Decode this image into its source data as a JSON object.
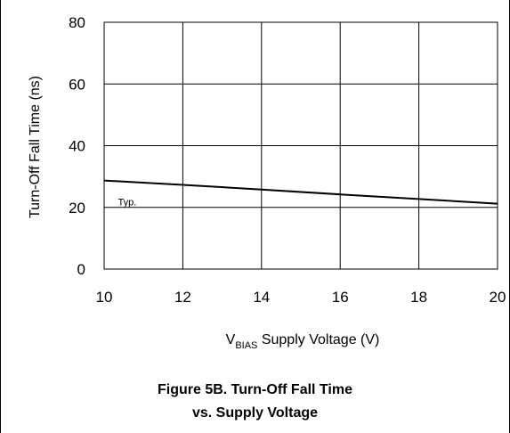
{
  "chart_data": {
    "type": "line",
    "title": "",
    "xlabel": {
      "prefix": "V",
      "subscript": "BIAS",
      "suffix": " Supply Voltage (V)"
    },
    "ylabel": "Turn-Off Fall Time (ns)",
    "xlim": [
      10,
      20
    ],
    "ylim": [
      0,
      80
    ],
    "xticks": [
      10,
      12,
      14,
      16,
      18,
      20
    ],
    "yticks": [
      0,
      20,
      40,
      60,
      80
    ],
    "grid": true,
    "series": [
      {
        "x": [
          10,
          12,
          14,
          16,
          18,
          20
        ],
        "y": [
          28.7,
          27.3,
          25.8,
          24.2,
          22.7,
          21.2
        ]
      }
    ],
    "annotations": [
      {
        "text": "Typ.",
        "x": 10.35,
        "y": 20.6
      }
    ],
    "caption": [
      "Figure 5B. Turn-Off Fall Time",
      "vs. Supply Voltage"
    ]
  }
}
